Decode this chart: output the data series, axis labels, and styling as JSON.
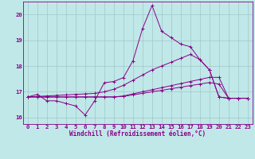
{
  "background_color": "#c0e8e8",
  "grid_color": "#a0c8c8",
  "line_color": "#880088",
  "marker": "+",
  "xlabel": "Windchill (Refroidissement éolien,°C)",
  "xlabel_fontsize": 5.5,
  "tick_fontsize": 5.2,
  "ylim": [
    15.75,
    20.5
  ],
  "xlim": [
    -0.5,
    23.5
  ],
  "yticks": [
    16,
    17,
    18,
    19,
    20
  ],
  "xticks": [
    0,
    1,
    2,
    3,
    4,
    5,
    6,
    7,
    8,
    9,
    10,
    11,
    12,
    13,
    14,
    15,
    16,
    17,
    18,
    19,
    20,
    21,
    22,
    23
  ],
  "series1_x": [
    0,
    1,
    2,
    3,
    4,
    5,
    6,
    7,
    8,
    9,
    10,
    11,
    12,
    13,
    14,
    15,
    16,
    17,
    18,
    19,
    20,
    21,
    22,
    23
  ],
  "series1_y": [
    16.8,
    16.9,
    16.65,
    16.65,
    16.55,
    16.45,
    16.1,
    16.65,
    17.35,
    17.4,
    17.55,
    18.2,
    19.45,
    20.35,
    19.35,
    19.1,
    18.85,
    18.75,
    18.25,
    17.85,
    16.8,
    16.75,
    16.75,
    16.75
  ],
  "series2_x": [
    0,
    1,
    2,
    3,
    4,
    5,
    6,
    7,
    8,
    9,
    10,
    11,
    12,
    13,
    14,
    15,
    16,
    17,
    18,
    19,
    20,
    21,
    22,
    23
  ],
  "series2_y": [
    16.8,
    16.8,
    16.8,
    16.8,
    16.8,
    16.8,
    16.8,
    16.8,
    16.8,
    16.8,
    16.82,
    16.88,
    16.94,
    17.0,
    17.06,
    17.12,
    17.18,
    17.24,
    17.3,
    17.36,
    17.3,
    16.75,
    16.75,
    16.75
  ],
  "series3_x": [
    0,
    1,
    2,
    3,
    4,
    5,
    6,
    7,
    8,
    9,
    10,
    11,
    12,
    13,
    14,
    15,
    16,
    17,
    18,
    19,
    20,
    21,
    22,
    23
  ],
  "series3_y": [
    16.8,
    16.82,
    16.84,
    16.86,
    16.88,
    16.9,
    16.92,
    16.94,
    17.0,
    17.1,
    17.25,
    17.45,
    17.65,
    17.85,
    18.0,
    18.15,
    18.3,
    18.45,
    18.25,
    17.85,
    16.8,
    16.75,
    16.75,
    16.75
  ],
  "series4_x": [
    0,
    1,
    2,
    3,
    4,
    5,
    6,
    7,
    8,
    9,
    10,
    11,
    12,
    13,
    14,
    15,
    16,
    17,
    18,
    19,
    20,
    21,
    22,
    23
  ],
  "series4_y": [
    16.8,
    16.8,
    16.8,
    16.8,
    16.8,
    16.8,
    16.8,
    16.8,
    16.8,
    16.8,
    16.84,
    16.92,
    17.0,
    17.08,
    17.16,
    17.24,
    17.32,
    17.4,
    17.48,
    17.56,
    17.56,
    16.75,
    16.75,
    16.75
  ]
}
